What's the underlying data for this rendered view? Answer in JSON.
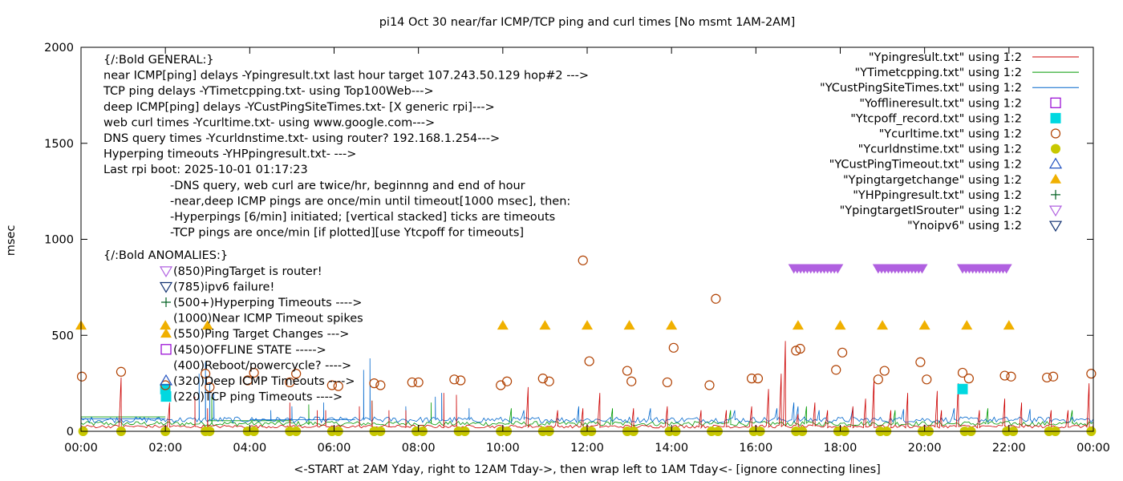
{
  "chart_data": {
    "type": "line",
    "title": "pi14 Oct 30  near/far ICMP/TCP ping and curl times [No msmt 1AM-2AM]",
    "xlabel": "<-START at 2AM Yday, right to 12AM Tday->, then wrap left to 1AM Tday<- [ignore connecting lines]",
    "ylabel": "msec",
    "xlim": [
      0,
      24
    ],
    "ylim": [
      0,
      2000
    ],
    "x_ticks": [
      {
        "v": 0,
        "label": "00:00"
      },
      {
        "v": 2,
        "label": "02:00"
      },
      {
        "v": 4,
        "label": "04:00"
      },
      {
        "v": 6,
        "label": "06:00"
      },
      {
        "v": 8,
        "label": "08:00"
      },
      {
        "v": 10,
        "label": "10:00"
      },
      {
        "v": 12,
        "label": "12:00"
      },
      {
        "v": 14,
        "label": "14:00"
      },
      {
        "v": 16,
        "label": "16:00"
      },
      {
        "v": 18,
        "label": "18:00"
      },
      {
        "v": 20,
        "label": "20:00"
      },
      {
        "v": 22,
        "label": "22:00"
      },
      {
        "v": 24,
        "label": "00:00"
      }
    ],
    "y_ticks": [
      {
        "v": 0,
        "label": "0"
      },
      {
        "v": 500,
        "label": "500"
      },
      {
        "v": 1000,
        "label": "1000"
      },
      {
        "v": 1500,
        "label": "1500"
      },
      {
        "v": 2000,
        "label": "2000"
      }
    ],
    "legend_position": "top-right",
    "legend": [
      {
        "label": "\"Ypingresult.txt\" using 1:2",
        "style": "line",
        "color": "#cc0000"
      },
      {
        "label": "\"YTimetcpping.txt\" using 1:2",
        "style": "line",
        "color": "#009900"
      },
      {
        "label": "\"YCustPingSiteTimes.txt\" using 1:2",
        "style": "line",
        "color": "#0066cc"
      },
      {
        "label": "\"Yofflineresult.txt\" using 1:2",
        "style": "square-open",
        "color": "#9400d3"
      },
      {
        "label": "\"Ytcpoff_record.txt\" using 1:2",
        "style": "square-filled",
        "color": "#00d8e0"
      },
      {
        "label": "\"Ycurltime.txt\" using 1:2",
        "style": "circle-open",
        "color": "#b04000"
      },
      {
        "label": "\"Ycurldnstime.txt\" using 1:2",
        "style": "circle-filled",
        "color": "#c8c800"
      },
      {
        "label": "\"YCustPingTimeout.txt\" using 1:2",
        "style": "triangle-up-open",
        "color": "#2050c0"
      },
      {
        "label": "\"Ypingtargetchange\" using 1:2",
        "style": "triangle-up-filled",
        "color": "#f0b000"
      },
      {
        "label": "\"YHPpingresult.txt\" using 1:2",
        "style": "plus",
        "color": "#006020"
      },
      {
        "label": "\"YpingtargetISrouter\" using 1:2",
        "style": "triangle-down-open",
        "color": "#b060e0"
      },
      {
        "label": "\"Ynoipv6\" using 1:2",
        "style": "triangle-down-open",
        "color": "#103070"
      }
    ],
    "annotations": {
      "general": [
        "{/:Bold GENERAL:}",
        "near ICMP[ping] delays -Ypingresult.txt last hour target 107.243.50.129 hop#2 --->",
        "TCP ping delays -YTimetcpping.txt- using Top100Web--->",
        "deep ICMP[ping] delays -YCustPingSiteTimes.txt- [X generic rpi]--->",
        "web curl times -Ycurltime.txt- using www.google.com--->",
        "DNS query times -Ycurldnstime.txt- using router? 192.168.1.254--->",
        "Hyperping timeouts -YHPpingresult.txt- --->",
        "Last rpi boot: 2025-10-01 01:17:23"
      ],
      "notes": [
        "-DNS query, web curl are twice/hr, beginnng and end of hour",
        "-near,deep ICMP pings are once/min until timeout[1000 msec], then:",
        "  -Hyperpings [6/min] initiated; [vertical stacked] ticks are timeouts",
        "-TCP pings are once/min [if plotted][use Ytcpoff for timeouts]"
      ],
      "anomalies_title": "{/:Bold ANOMALIES:}",
      "anomalies": [
        {
          "text": "(850)PingTarget is router!",
          "marker": "triangle-down-open",
          "color": "#b060e0"
        },
        {
          "text": "(785)ipv6 failure!",
          "marker": "triangle-down-open",
          "color": "#103070"
        },
        {
          "text": "(500+)Hyperping Timeouts ---->",
          "marker": "plus",
          "color": "#006020"
        },
        {
          "text": "(1000)Near ICMP Timeout spikes",
          "marker": "none",
          "color": ""
        },
        {
          "text": "(550)Ping Target Changes --->",
          "marker": "triangle-up-filled",
          "color": "#f0b000"
        },
        {
          "text": "(450)OFFLINE STATE ----->",
          "marker": "square-open",
          "color": "#9400d3"
        },
        {
          "text": "(400)Reboot/powercycle? ---->",
          "marker": "none",
          "color": ""
        },
        {
          "text": "(320)Deep ICMP Timeouts ---->",
          "marker": "triangle-up-open",
          "color": "#2050c0"
        },
        {
          "text": "(220)TCP ping Timeouts ---->",
          "marker": "square-filled",
          "color": "#00d8e0"
        }
      ]
    },
    "series": {
      "curltime": {
        "name": "\"Ycurltime.txt\" using 1:2",
        "color": "#b04000",
        "points": [
          [
            0.02,
            285
          ],
          [
            0.95,
            310
          ],
          [
            2.0,
            240
          ],
          [
            2.95,
            300
          ],
          [
            3.05,
            230
          ],
          [
            3.95,
            265
          ],
          [
            4.1,
            305
          ],
          [
            4.95,
            255
          ],
          [
            5.1,
            300
          ],
          [
            5.95,
            240
          ],
          [
            6.1,
            235
          ],
          [
            6.95,
            250
          ],
          [
            7.1,
            240
          ],
          [
            7.85,
            255
          ],
          [
            8.0,
            255
          ],
          [
            8.85,
            270
          ],
          [
            9.0,
            265
          ],
          [
            9.95,
            240
          ],
          [
            10.1,
            260
          ],
          [
            10.95,
            275
          ],
          [
            11.1,
            260
          ],
          [
            11.9,
            890
          ],
          [
            12.05,
            365
          ],
          [
            12.95,
            315
          ],
          [
            13.05,
            260
          ],
          [
            13.9,
            255
          ],
          [
            14.05,
            435
          ],
          [
            14.9,
            240
          ],
          [
            15.05,
            690
          ],
          [
            15.9,
            275
          ],
          [
            16.05,
            275
          ],
          [
            16.95,
            420
          ],
          [
            17.05,
            430
          ],
          [
            17.9,
            320
          ],
          [
            18.05,
            410
          ],
          [
            18.9,
            270
          ],
          [
            19.05,
            315
          ],
          [
            19.9,
            360
          ],
          [
            20.05,
            270
          ],
          [
            20.9,
            305
          ],
          [
            21.05,
            275
          ],
          [
            21.9,
            290
          ],
          [
            22.05,
            285
          ],
          [
            22.9,
            280
          ],
          [
            23.05,
            285
          ],
          [
            23.95,
            300
          ]
        ]
      },
      "curldnstime": {
        "name": "\"Ycurldnstime.txt\" using 1:2",
        "color": "#c8c800",
        "x": [
          0.05,
          0.95,
          2.0,
          2.95,
          3.05,
          3.95,
          4.1,
          4.95,
          5.1,
          5.95,
          6.1,
          6.95,
          7.1,
          7.95,
          8.1,
          8.95,
          9.1,
          9.95,
          10.1,
          10.95,
          11.1,
          11.95,
          12.1,
          12.95,
          13.1,
          13.95,
          14.1,
          14.95,
          15.1,
          15.95,
          16.1,
          16.95,
          17.1,
          17.95,
          18.1,
          18.95,
          19.1,
          19.95,
          20.1,
          20.95,
          21.1,
          21.95,
          22.1,
          22.95,
          23.1,
          23.95
        ],
        "y": 0
      },
      "ping_target_change": {
        "name": "\"Ypingtargetchange\" using 1:2",
        "color": "#f0b000",
        "x": [
          0.0,
          2.0,
          3.0,
          10.0,
          11.0,
          12.0,
          13.0,
          14.0,
          17.0,
          18.0,
          19.0,
          20.0,
          21.0,
          22.0
        ],
        "y": 550
      },
      "tcpoff": {
        "name": "\"Ytcpoff_record.txt\" using 1:2",
        "color": "#00d8e0",
        "x": [
          2.0,
          20.9
        ],
        "y": 220
      },
      "target_is_router": {
        "name": "\"YpingtargetISrouter\" using 1:2",
        "color": "#b060e0",
        "ranges": [
          [
            16.9,
            18.0
          ],
          [
            18.9,
            20.0
          ],
          [
            20.9,
            22.0
          ]
        ],
        "y": 850
      },
      "near_icmp": {
        "name": "\"Ypingresult.txt\" using 1:2",
        "color": "#cc0000",
        "baseline": 25,
        "spikes": [
          [
            0.95,
            280
          ],
          [
            2.1,
            150
          ],
          [
            2.7,
            180
          ],
          [
            3.0,
            120
          ],
          [
            4.95,
            150
          ],
          [
            5.6,
            110
          ],
          [
            5.8,
            110
          ],
          [
            6.6,
            130
          ],
          [
            6.9,
            160
          ],
          [
            7.3,
            110
          ],
          [
            7.7,
            110
          ],
          [
            8.6,
            200
          ],
          [
            8.9,
            190
          ],
          [
            10.6,
            230
          ],
          [
            11.3,
            110
          ],
          [
            11.9,
            120
          ],
          [
            12.3,
            200
          ],
          [
            13.1,
            120
          ],
          [
            13.9,
            130
          ],
          [
            14.7,
            110
          ],
          [
            15.3,
            110
          ],
          [
            15.9,
            130
          ],
          [
            16.3,
            220
          ],
          [
            16.6,
            300
          ],
          [
            16.7,
            470
          ],
          [
            17.0,
            90
          ],
          [
            17.4,
            150
          ],
          [
            17.7,
            110
          ],
          [
            18.3,
            130
          ],
          [
            18.6,
            170
          ],
          [
            18.8,
            270
          ],
          [
            19.2,
            110
          ],
          [
            19.6,
            200
          ],
          [
            20.3,
            210
          ],
          [
            20.4,
            110
          ],
          [
            20.8,
            250
          ],
          [
            21.3,
            110
          ],
          [
            21.9,
            170
          ],
          [
            22.3,
            150
          ],
          [
            23.0,
            110
          ],
          [
            23.4,
            110
          ],
          [
            23.9,
            250
          ]
        ]
      },
      "tcp_ping": {
        "name": "\"YTimetcpping.txt\" using 1:2",
        "color": "#009900",
        "baseline": 40,
        "jitter": 12,
        "flat_segments": [
          [
            0.0,
            2.0,
            75
          ],
          [
            3.0,
            5.0,
            55
          ]
        ],
        "spikes": [
          [
            3.1,
            180
          ],
          [
            5.4,
            140
          ],
          [
            6.9,
            160
          ],
          [
            8.3,
            150
          ],
          [
            10.2,
            120
          ],
          [
            12.6,
            120
          ],
          [
            15.4,
            110
          ],
          [
            17.2,
            130
          ],
          [
            19.3,
            110
          ],
          [
            21.5,
            120
          ],
          [
            23.5,
            110
          ]
        ]
      },
      "deep_icmp": {
        "name": "\"YCustPingSiteTimes.txt\" using 1:2",
        "color": "#0066cc",
        "baseline": 60,
        "jitter": 15,
        "flat_segments": [
          [
            0.0,
            2.0,
            65
          ],
          [
            4.0,
            6.5,
            60
          ]
        ],
        "spikes": [
          [
            2.8,
            300
          ],
          [
            2.95,
            360
          ],
          [
            3.05,
            250
          ],
          [
            3.15,
            200
          ],
          [
            4.5,
            110
          ],
          [
            5.0,
            130
          ],
          [
            5.75,
            150
          ],
          [
            6.7,
            320
          ],
          [
            6.85,
            380
          ],
          [
            7.7,
            130
          ],
          [
            8.4,
            180
          ],
          [
            8.55,
            200
          ],
          [
            9.2,
            120
          ],
          [
            10.5,
            110
          ],
          [
            11.8,
            130
          ],
          [
            13.5,
            120
          ],
          [
            15.5,
            110
          ],
          [
            16.5,
            120
          ],
          [
            16.9,
            150
          ],
          [
            17.0,
            130
          ],
          [
            17.5,
            110
          ],
          [
            18.3,
            120
          ],
          [
            19.5,
            115
          ],
          [
            20.7,
            120
          ],
          [
            22.5,
            115
          ]
        ]
      }
    }
  }
}
